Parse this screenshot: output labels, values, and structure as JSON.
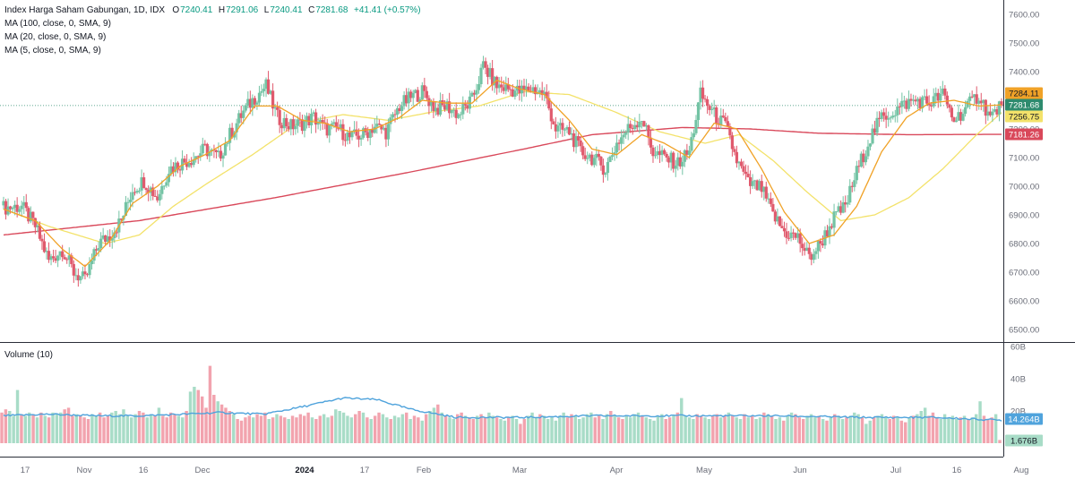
{
  "legend": {
    "title": "Index Harga Saham Gabungan, 1D, IDX",
    "open_label": "O",
    "open": "7240.41",
    "high_label": "H",
    "high": "7291.06",
    "low_label": "L",
    "low": "7240.41",
    "close_label": "C",
    "close": "7281.68",
    "change": "+41.41 (+0.57%)",
    "ma100": "MA (100, close, 0, SMA, 9)",
    "ma20": "MA (20, close, 0, SMA, 9)",
    "ma5": "MA (5, close, 0, SMA, 9)"
  },
  "volume_label": "Volume (10)",
  "colors": {
    "up": "#73c3a4",
    "down": "#e05a6d",
    "ma100": "#d9485a",
    "ma20": "#f3e26a",
    "ma5": "#f0a227",
    "vol_up": "#a8dcc7",
    "vol_down": "#f2a3ae",
    "vol_ma": "#4fa3dc"
  },
  "chart_data": [
    {
      "type": "candlestick",
      "title": "Index Harga Saham Gabungan, 1D, IDX",
      "ylim": [
        6450,
        7700
      ],
      "y_ticks": [
        "7600.00",
        "7500.00",
        "7400.00",
        "7300.00",
        "7200.00",
        "7100.00",
        "7000.00",
        "6900.00",
        "6800.00",
        "6700.00",
        "6600.00",
        "6500.00"
      ],
      "x_ticks": [
        "17",
        "Nov",
        "16",
        "Dec",
        "2024",
        "17",
        "Feb",
        "Mar",
        "Apr",
        "May",
        "Jun",
        "Jul",
        "16",
        "Aug"
      ],
      "price_tags": [
        {
          "label": "7284.11",
          "value": 7284.11,
          "series": "ma5"
        },
        {
          "label": "7281.68",
          "value": 7281.68,
          "series": "close"
        },
        {
          "label": "7256.75",
          "value": 7256.75,
          "series": "ma20"
        },
        {
          "label": "7181.26",
          "value": 7181.26,
          "series": "ma100"
        }
      ],
      "series": [
        {
          "name": "Index Harga Saham Gabungan",
          "kind": "candles",
          "close_path": [
            [
              0,
              6925
            ],
            [
              8,
              6930
            ],
            [
              14,
              6860
            ],
            [
              20,
              6740
            ],
            [
              26,
              6780
            ],
            [
              31,
              6700
            ],
            [
              36,
              6670
            ],
            [
              42,
              6800
            ],
            [
              47,
              6830
            ],
            [
              52,
              6880
            ],
            [
              57,
              6990
            ],
            [
              62,
              7020
            ],
            [
              68,
              6960
            ],
            [
              73,
              7060
            ],
            [
              78,
              7080
            ],
            [
              84,
              7100
            ],
            [
              89,
              7130
            ],
            [
              95,
              7100
            ],
            [
              100,
              7180
            ],
            [
              106,
              7260
            ],
            [
              111,
              7310
            ],
            [
              116,
              7350
            ],
            [
              121,
              7240
            ],
            [
              127,
              7210
            ],
            [
              132,
              7220
            ],
            [
              137,
              7240
            ],
            [
              142,
              7200
            ],
            [
              148,
              7200
            ],
            [
              153,
              7170
            ],
            [
              159,
              7180
            ],
            [
              164,
              7210
            ],
            [
              169,
              7190
            ],
            [
              175,
              7280
            ],
            [
              180,
              7310
            ],
            [
              185,
              7330
            ],
            [
              191,
              7270
            ],
            [
              196,
              7280
            ],
            [
              201,
              7250
            ],
            [
              207,
              7300
            ],
            [
              212,
              7420
            ],
            [
              218,
              7350
            ],
            [
              223,
              7340
            ],
            [
              228,
              7330
            ],
            [
              234,
              7340
            ],
            [
              239,
              7320
            ],
            [
              244,
              7200
            ],
            [
              250,
              7190
            ],
            [
              255,
              7120
            ],
            [
              260,
              7100
            ],
            [
              266,
              7060
            ],
            [
              271,
              7150
            ],
            [
              276,
              7200
            ],
            [
              282,
              7240
            ],
            [
              287,
              7120
            ],
            [
              292,
              7100
            ],
            [
              298,
              7080
            ],
            [
              303,
              7120
            ],
            [
              308,
              7320
            ],
            [
              314,
              7250
            ],
            [
              319,
              7210
            ],
            [
              324,
              7090
            ],
            [
              329,
              7010
            ],
            [
              335,
              6990
            ],
            [
              340,
              6900
            ],
            [
              345,
              6840
            ],
            [
              351,
              6820
            ],
            [
              356,
              6750
            ],
            [
              361,
              6800
            ],
            [
              367,
              6890
            ],
            [
              372,
              6930
            ],
            [
              377,
              7050
            ],
            [
              383,
              7170
            ],
            [
              388,
              7240
            ],
            [
              393,
              7260
            ],
            [
              399,
              7290
            ],
            [
              404,
              7300
            ],
            [
              409,
              7290
            ],
            [
              415,
              7320
            ],
            [
              420,
              7230
            ],
            [
              425,
              7270
            ],
            [
              431,
              7320
            ],
            [
              436,
              7240
            ],
            [
              441,
              7282
            ]
          ]
        },
        {
          "name": "MA (100, close, 0, SMA, 9)",
          "kind": "line",
          "points": [
            [
              0,
              6830
            ],
            [
              60,
              6880
            ],
            [
              120,
              6960
            ],
            [
              180,
              7050
            ],
            [
              230,
              7130
            ],
            [
              260,
              7180
            ],
            [
              300,
              7205
            ],
            [
              330,
              7200
            ],
            [
              360,
              7185
            ],
            [
              400,
              7180
            ],
            [
              441,
              7181
            ]
          ]
        },
        {
          "name": "MA (20, close, 0, SMA, 9)",
          "kind": "line",
          "points": [
            [
              0,
              6920
            ],
            [
              20,
              6860
            ],
            [
              45,
              6800
            ],
            [
              60,
              6830
            ],
            [
              75,
              6930
            ],
            [
              90,
              7010
            ],
            [
              110,
              7110
            ],
            [
              130,
              7220
            ],
            [
              150,
              7250
            ],
            [
              170,
              7230
            ],
            [
              190,
              7260
            ],
            [
              210,
              7280
            ],
            [
              230,
              7330
            ],
            [
              250,
              7320
            ],
            [
              270,
              7260
            ],
            [
              290,
              7190
            ],
            [
              310,
              7150
            ],
            [
              325,
              7180
            ],
            [
              340,
              7090
            ],
            [
              355,
              6980
            ],
            [
              370,
              6880
            ],
            [
              385,
              6900
            ],
            [
              400,
              6960
            ],
            [
              415,
              7060
            ],
            [
              430,
              7180
            ],
            [
              441,
              7257
            ]
          ]
        },
        {
          "name": "MA (5, close, 0, SMA, 9)",
          "kind": "line",
          "points": [
            [
              0,
              6920
            ],
            [
              14,
              6880
            ],
            [
              26,
              6780
            ],
            [
              36,
              6720
            ],
            [
              47,
              6810
            ],
            [
              57,
              6940
            ],
            [
              68,
              7000
            ],
            [
              78,
              7070
            ],
            [
              89,
              7110
            ],
            [
              100,
              7160
            ],
            [
              111,
              7280
            ],
            [
              121,
              7280
            ],
            [
              132,
              7230
            ],
            [
              142,
              7220
            ],
            [
              153,
              7190
            ],
            [
              164,
              7200
            ],
            [
              175,
              7240
            ],
            [
              185,
              7300
            ],
            [
              196,
              7290
            ],
            [
              207,
              7290
            ],
            [
              218,
              7370
            ],
            [
              228,
              7340
            ],
            [
              239,
              7320
            ],
            [
              250,
              7230
            ],
            [
              260,
              7130
            ],
            [
              271,
              7110
            ],
            [
              282,
              7180
            ],
            [
              292,
              7150
            ],
            [
              303,
              7100
            ],
            [
              314,
              7220
            ],
            [
              324,
              7200
            ],
            [
              335,
              7060
            ],
            [
              345,
              6910
            ],
            [
              356,
              6800
            ],
            [
              367,
              6830
            ],
            [
              377,
              6930
            ],
            [
              388,
              7120
            ],
            [
              399,
              7240
            ],
            [
              409,
              7290
            ],
            [
              420,
              7300
            ],
            [
              431,
              7280
            ],
            [
              441,
              7284
            ]
          ]
        }
      ]
    },
    {
      "type": "bar",
      "title": "Volume (10)",
      "ylim": [
        0,
        60
      ],
      "y_ticks": [
        "60B",
        "40B",
        "20B"
      ],
      "value_tags": [
        {
          "label": "14.264B",
          "value": 14.264,
          "series": "volume_ma"
        },
        {
          "label": "1.676B",
          "value": 1.676,
          "series": "volume"
        }
      ],
      "unit": "B",
      "series": [
        {
          "name": "Volume",
          "kind": "bars",
          "values": [
            19,
            21,
            20,
            17,
            33,
            18,
            17,
            19,
            18,
            16,
            19,
            17,
            16,
            19,
            18,
            19,
            21,
            22,
            17,
            18,
            17,
            16,
            15,
            18,
            17,
            19,
            16,
            17,
            19,
            20,
            18,
            21,
            17,
            16,
            18,
            20,
            19,
            16,
            18,
            17,
            22,
            17,
            16,
            19,
            18,
            17,
            16,
            20,
            32,
            35,
            33,
            29,
            22,
            48,
            30,
            26,
            24,
            22,
            20,
            18,
            15,
            14,
            16,
            17,
            16,
            18,
            17,
            19,
            15,
            16,
            18,
            17,
            16,
            15,
            17,
            16,
            18,
            17,
            19,
            16,
            15,
            17,
            18,
            16,
            17,
            21,
            20,
            19,
            17,
            16,
            18,
            20,
            19,
            16,
            15,
            17,
            19,
            18,
            16,
            15,
            17,
            16,
            18,
            19,
            15,
            17,
            16,
            14,
            18,
            20,
            22,
            24,
            19,
            17,
            16,
            15,
            18,
            19,
            17,
            16,
            15,
            17,
            18,
            16,
            19,
            17,
            16,
            15,
            14,
            16,
            17,
            15,
            12,
            15,
            17,
            19,
            16,
            18,
            17,
            15,
            16,
            14,
            17,
            19,
            16,
            18,
            17,
            15,
            16,
            18,
            19,
            16,
            17,
            15,
            18,
            20,
            17,
            16,
            15,
            17,
            16,
            18,
            19,
            17,
            16,
            15,
            14,
            17,
            18,
            15,
            16,
            17,
            19,
            28,
            17,
            16,
            15,
            18,
            17,
            16,
            15,
            17,
            18,
            16,
            17,
            19,
            17,
            16,
            15,
            18,
            16,
            17,
            15,
            16,
            19,
            18,
            17,
            15,
            16,
            14,
            17,
            19,
            18,
            16,
            15,
            17,
            18,
            16,
            17,
            15,
            14,
            16,
            18,
            17,
            15,
            16,
            17,
            19,
            18,
            16,
            12,
            14,
            16,
            17,
            18,
            16,
            15,
            17,
            16,
            14,
            13,
            16,
            17,
            18,
            20,
            22,
            17,
            19,
            16,
            15,
            18,
            16,
            17,
            15,
            16,
            17,
            15,
            16,
            18,
            26,
            17,
            15,
            16,
            18,
            2
          ]
        },
        {
          "name": "Volume MA",
          "kind": "line",
          "points": [
            [
              0,
              17
            ],
            [
              20,
              18
            ],
            [
              40,
              17
            ],
            [
              60,
              17
            ],
            [
              80,
              18
            ],
            [
              95,
              19
            ],
            [
              115,
              18
            ],
            [
              130,
              22
            ],
            [
              150,
              28
            ],
            [
              165,
              27
            ],
            [
              180,
              21
            ],
            [
              200,
              16
            ],
            [
              230,
              16
            ],
            [
              260,
              17
            ],
            [
              300,
              17
            ],
            [
              340,
              17
            ],
            [
              380,
              16
            ],
            [
              410,
              16
            ],
            [
              441,
              14.264
            ]
          ]
        }
      ]
    }
  ]
}
